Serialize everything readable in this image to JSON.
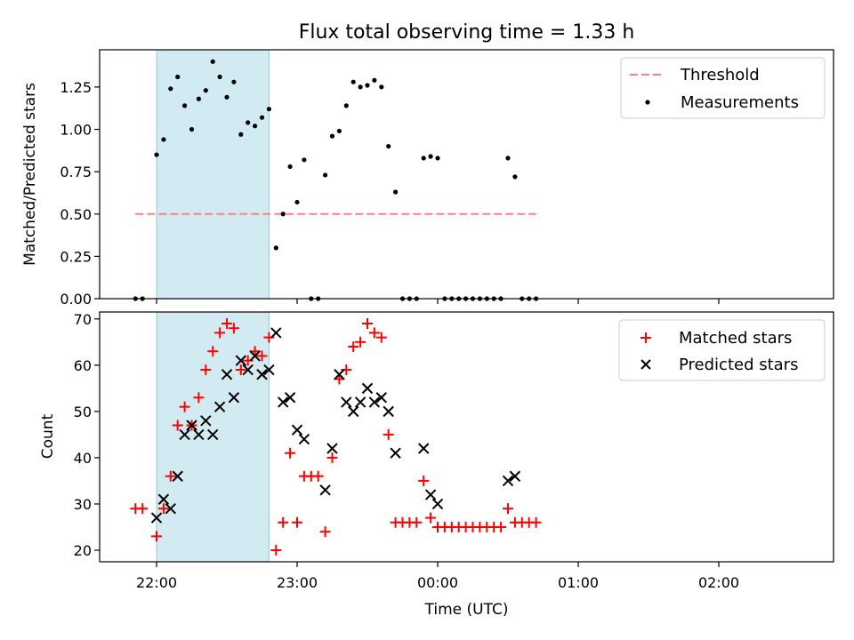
{
  "title": "Flux total observing time = 1.33 h",
  "xlabel": "Time (UTC)",
  "x_ticks": [
    "22:00",
    "23:00",
    "00:00",
    "01:00",
    "02:00"
  ],
  "shaded_interval": [
    "22:00",
    "22:48"
  ],
  "colors": {
    "shade": "#add8e6",
    "threshold": "#ff7f7f",
    "matched": "#ff0000",
    "predicted": "#000000",
    "measurement": "#000000"
  },
  "chart_data": [
    {
      "type": "scatter",
      "ylabel": "Matched/Predicted stars",
      "ylim": [
        0,
        1.47
      ],
      "y_ticks": [
        "0.00",
        "0.25",
        "0.50",
        "0.75",
        "1.00",
        "1.25"
      ],
      "legend_position": "top-right",
      "threshold": {
        "name": "Threshold",
        "y": 0.5,
        "x_range": [
          "21:51",
          "24:42"
        ]
      },
      "series": [
        {
          "name": "Measurements",
          "marker": "dot",
          "points": [
            [
              "21:51",
              0.0
            ],
            [
              "21:54",
              0.0
            ],
            [
              "22:00",
              0.85
            ],
            [
              "22:03",
              0.94
            ],
            [
              "22:06",
              1.24
            ],
            [
              "22:09",
              1.31
            ],
            [
              "22:12",
              1.14
            ],
            [
              "22:15",
              1.0
            ],
            [
              "22:18",
              1.18
            ],
            [
              "22:21",
              1.23
            ],
            [
              "22:24",
              1.4
            ],
            [
              "22:27",
              1.31
            ],
            [
              "22:30",
              1.19
            ],
            [
              "22:33",
              1.28
            ],
            [
              "22:36",
              0.97
            ],
            [
              "22:39",
              1.04
            ],
            [
              "22:42",
              1.02
            ],
            [
              "22:45",
              1.07
            ],
            [
              "22:48",
              1.12
            ],
            [
              "22:51",
              0.3
            ],
            [
              "22:54",
              0.5
            ],
            [
              "22:57",
              0.78
            ],
            [
              "23:00",
              0.57
            ],
            [
              "23:03",
              0.82
            ],
            [
              "23:06",
              0.0
            ],
            [
              "23:09",
              0.0
            ],
            [
              "23:12",
              0.73
            ],
            [
              "23:15",
              0.96
            ],
            [
              "23:18",
              0.99
            ],
            [
              "23:21",
              1.14
            ],
            [
              "23:24",
              1.28
            ],
            [
              "23:27",
              1.25
            ],
            [
              "23:30",
              1.26
            ],
            [
              "23:33",
              1.29
            ],
            [
              "23:36",
              1.25
            ],
            [
              "23:39",
              0.9
            ],
            [
              "23:42",
              0.63
            ],
            [
              "23:45",
              0.0
            ],
            [
              "23:48",
              0.0
            ],
            [
              "23:51",
              0.0
            ],
            [
              "23:54",
              0.83
            ],
            [
              "23:57",
              0.84
            ],
            [
              "24:00",
              0.83
            ],
            [
              "24:03",
              0.0
            ],
            [
              "24:06",
              0.0
            ],
            [
              "24:09",
              0.0
            ],
            [
              "24:12",
              0.0
            ],
            [
              "24:15",
              0.0
            ],
            [
              "24:18",
              0.0
            ],
            [
              "24:21",
              0.0
            ],
            [
              "24:24",
              0.0
            ],
            [
              "24:27",
              0.0
            ],
            [
              "24:30",
              0.83
            ],
            [
              "24:33",
              0.72
            ],
            [
              "24:36",
              0.0
            ],
            [
              "24:39",
              0.0
            ],
            [
              "24:42",
              0.0
            ]
          ]
        }
      ]
    },
    {
      "type": "scatter",
      "ylabel": "Count",
      "ylim": [
        17.5,
        71.5
      ],
      "y_ticks": [
        "20",
        "30",
        "40",
        "50",
        "60",
        "70"
      ],
      "legend_position": "top-right",
      "series": [
        {
          "name": "Matched stars",
          "marker": "plus",
          "points": [
            [
              "21:51",
              29
            ],
            [
              "21:54",
              29
            ],
            [
              "22:00",
              23
            ],
            [
              "22:03",
              29
            ],
            [
              "22:06",
              36
            ],
            [
              "22:09",
              47
            ],
            [
              "22:12",
              51
            ],
            [
              "22:15",
              47
            ],
            [
              "22:18",
              53
            ],
            [
              "22:21",
              59
            ],
            [
              "22:24",
              63
            ],
            [
              "22:27",
              67
            ],
            [
              "22:30",
              69
            ],
            [
              "22:33",
              68
            ],
            [
              "22:36",
              59
            ],
            [
              "22:39",
              61
            ],
            [
              "22:42",
              63
            ],
            [
              "22:45",
              62
            ],
            [
              "22:48",
              66
            ],
            [
              "22:51",
              20
            ],
            [
              "22:54",
              26
            ],
            [
              "22:57",
              41
            ],
            [
              "23:00",
              26
            ],
            [
              "23:03",
              36
            ],
            [
              "23:06",
              36
            ],
            [
              "23:09",
              36
            ],
            [
              "23:12",
              24
            ],
            [
              "23:15",
              40
            ],
            [
              "23:18",
              57
            ],
            [
              "23:21",
              59
            ],
            [
              "23:24",
              64
            ],
            [
              "23:27",
              65
            ],
            [
              "23:30",
              69
            ],
            [
              "23:33",
              67
            ],
            [
              "23:36",
              66
            ],
            [
              "23:39",
              45
            ],
            [
              "23:42",
              26
            ],
            [
              "23:45",
              26
            ],
            [
              "23:48",
              26
            ],
            [
              "23:51",
              26
            ],
            [
              "23:54",
              35
            ],
            [
              "23:57",
              27
            ],
            [
              "24:00",
              25
            ],
            [
              "24:03",
              25
            ],
            [
              "24:06",
              25
            ],
            [
              "24:09",
              25
            ],
            [
              "24:12",
              25
            ],
            [
              "24:15",
              25
            ],
            [
              "24:18",
              25
            ],
            [
              "24:21",
              25
            ],
            [
              "24:24",
              25
            ],
            [
              "24:27",
              25
            ],
            [
              "24:30",
              29
            ],
            [
              "24:33",
              26
            ],
            [
              "24:36",
              26
            ],
            [
              "24:39",
              26
            ],
            [
              "24:42",
              26
            ]
          ]
        },
        {
          "name": "Predicted stars",
          "marker": "x",
          "points": [
            [
              "22:00",
              27
            ],
            [
              "22:03",
              31
            ],
            [
              "22:06",
              29
            ],
            [
              "22:09",
              36
            ],
            [
              "22:12",
              45
            ],
            [
              "22:15",
              47
            ],
            [
              "22:18",
              45
            ],
            [
              "22:21",
              48
            ],
            [
              "22:24",
              45
            ],
            [
              "22:27",
              51
            ],
            [
              "22:30",
              58
            ],
            [
              "22:33",
              53
            ],
            [
              "22:36",
              61
            ],
            [
              "22:39",
              59
            ],
            [
              "22:42",
              62
            ],
            [
              "22:45",
              58
            ],
            [
              "22:48",
              59
            ],
            [
              "22:51",
              67
            ],
            [
              "22:54",
              52
            ],
            [
              "22:57",
              53
            ],
            [
              "23:00",
              46
            ],
            [
              "23:03",
              44
            ],
            [
              "23:12",
              33
            ],
            [
              "23:15",
              42
            ],
            [
              "23:18",
              58
            ],
            [
              "23:21",
              52
            ],
            [
              "23:24",
              50
            ],
            [
              "23:27",
              52
            ],
            [
              "23:30",
              55
            ],
            [
              "23:33",
              52
            ],
            [
              "23:36",
              53
            ],
            [
              "23:39",
              50
            ],
            [
              "23:42",
              41
            ],
            [
              "23:54",
              42
            ],
            [
              "23:57",
              32
            ],
            [
              "24:00",
              30
            ],
            [
              "24:30",
              35
            ],
            [
              "24:33",
              36
            ]
          ]
        }
      ]
    }
  ]
}
